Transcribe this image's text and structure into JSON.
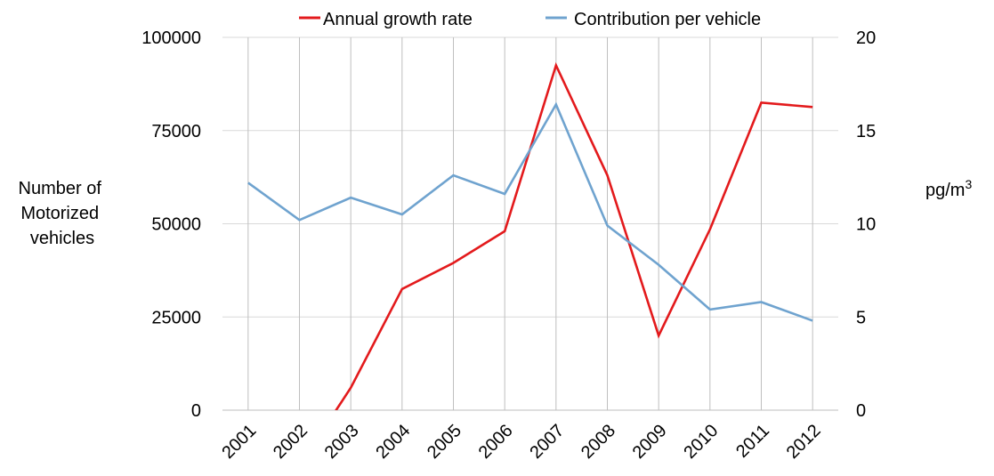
{
  "chart_data": {
    "type": "line",
    "categories": [
      "2001",
      "2002",
      "2003",
      "2004",
      "2005",
      "2006",
      "2007",
      "2008",
      "2009",
      "2010",
      "2011",
      "2012"
    ],
    "y_left": {
      "label_lines": [
        "Number of",
        "Motorized",
        "vehicles"
      ],
      "ticks": [
        "0",
        "25000",
        "50000",
        "75000",
        "100000"
      ],
      "ylim": [
        0,
        100000
      ]
    },
    "y_right": {
      "label": "pg/m",
      "label_superscript": "3",
      "ticks": [
        "0",
        "5",
        "10",
        "15",
        "20"
      ],
      "ylim": [
        0,
        20
      ]
    },
    "series": [
      {
        "name": "Annual growth rate",
        "axis": "left",
        "color": "#e31a1c",
        "values": [
          null,
          -15000,
          6000,
          32500,
          39500,
          48000,
          92500,
          63000,
          20000,
          48500,
          82500,
          81300
        ]
      },
      {
        "name": "Contribution per vehicle",
        "axis": "right",
        "color": "#6fa3cf",
        "values": [
          12.2,
          10.2,
          11.4,
          10.5,
          12.6,
          11.6,
          16.4,
          9.9,
          7.8,
          5.4,
          5.8,
          4.8
        ]
      }
    ],
    "grid": {
      "horizontal": true,
      "vertical": true
    },
    "legend_position": "top"
  }
}
